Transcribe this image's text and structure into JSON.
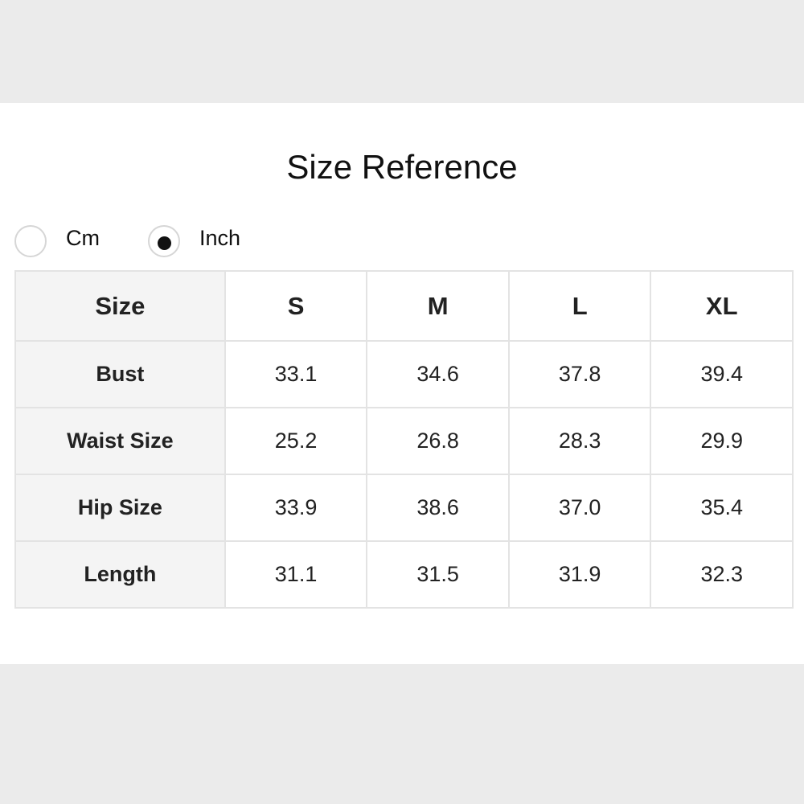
{
  "title": "Size Reference",
  "units": [
    {
      "label": "Cm",
      "selected": false
    },
    {
      "label": "Inch",
      "selected": true
    }
  ],
  "table": {
    "headers": [
      "Size",
      "S",
      "M",
      "L",
      "XL"
    ],
    "rows": [
      {
        "label": "Bust",
        "values": [
          "33.1",
          "34.6",
          "37.8",
          "39.4"
        ]
      },
      {
        "label": "Waist Size",
        "values": [
          "25.2",
          "26.8",
          "28.3",
          "29.9"
        ]
      },
      {
        "label": "Hip Size",
        "values": [
          "33.9",
          "38.6",
          "37.0",
          "35.4"
        ]
      },
      {
        "label": "Length",
        "values": [
          "31.1",
          "31.5",
          "31.9",
          "32.3"
        ]
      }
    ]
  }
}
